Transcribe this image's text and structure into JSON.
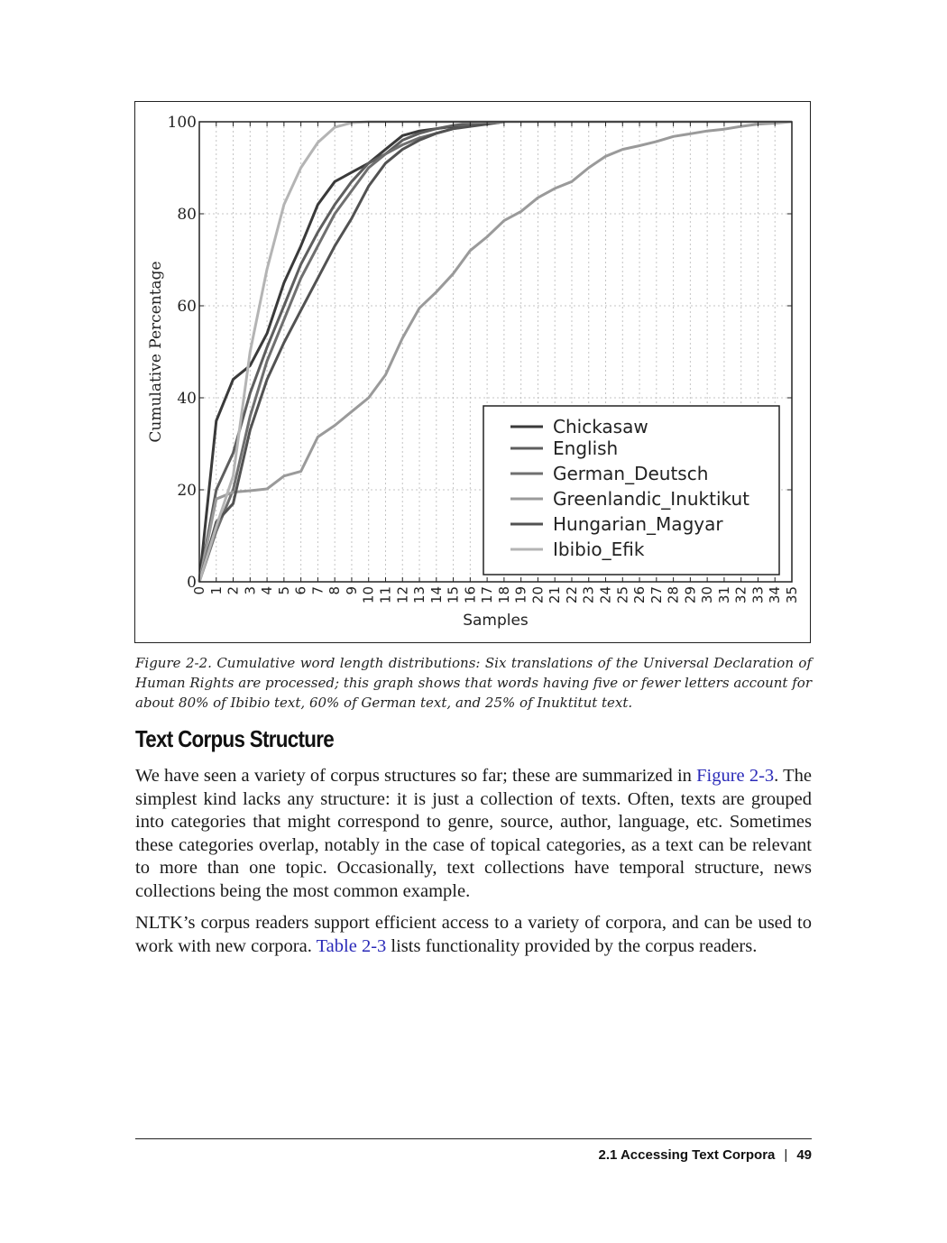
{
  "chart_data": {
    "type": "line",
    "xlabel": "Samples",
    "ylabel": "Cumulative Percentage",
    "xlim": [
      0,
      35
    ],
    "ylim": [
      0,
      100
    ],
    "x_ticks": [
      "0",
      "1",
      "2",
      "3",
      "4",
      "5",
      "6",
      "7",
      "8",
      "9",
      "10",
      "11",
      "12",
      "13",
      "14",
      "15",
      "16",
      "17",
      "18",
      "19",
      "20",
      "21",
      "22",
      "23",
      "24",
      "25",
      "26",
      "27",
      "28",
      "29",
      "30",
      "31",
      "32",
      "33",
      "34",
      "35"
    ],
    "y_ticks": [
      "0",
      "20",
      "40",
      "60",
      "80",
      "100"
    ],
    "grid": true,
    "legend_position": "lower-right",
    "series": [
      {
        "name": "Chickasaw",
        "color": "#3a3a3a",
        "values": [
          0,
          35,
          44,
          47,
          54,
          65,
          73,
          82,
          87,
          89,
          91,
          94,
          97,
          98,
          98.5,
          99,
          99.3,
          99.6,
          100,
          100,
          100,
          100,
          100,
          100,
          100,
          100,
          100,
          100,
          100,
          100,
          100,
          100,
          100,
          100,
          100,
          100
        ]
      },
      {
        "name": "English",
        "color": "#5e5e5e",
        "values": [
          0,
          20,
          28,
          41,
          51,
          60,
          69,
          76,
          82,
          87,
          91,
          93,
          96,
          97.5,
          98.5,
          99.2,
          99.6,
          99.8,
          100,
          100,
          100,
          100,
          100,
          100,
          100,
          100,
          100,
          100,
          100,
          100,
          100,
          100,
          100,
          100,
          100,
          100
        ]
      },
      {
        "name": "German_Deutsch",
        "color": "#6f6f6f",
        "values": [
          0,
          11,
          20,
          36,
          48,
          57,
          66,
          73,
          80,
          85,
          90,
          93,
          95,
          96.5,
          97.5,
          98.5,
          99.2,
          99.6,
          100,
          100,
          100,
          100,
          100,
          100,
          100,
          100,
          100,
          100,
          100,
          100,
          100,
          100,
          100,
          100,
          100,
          100
        ]
      },
      {
        "name": "Greenlandic_Inuktikut",
        "color": "#9a9a9a",
        "values": [
          0,
          18,
          19.5,
          19.8,
          20.2,
          23,
          24,
          31.5,
          34,
          37,
          40,
          45,
          53,
          59.5,
          63,
          67,
          72,
          75,
          78.5,
          80.5,
          83.5,
          85.5,
          87,
          90,
          92.5,
          94,
          94.8,
          95.7,
          96.8,
          97.4,
          98,
          98.4,
          99,
          99.5,
          99.7,
          100
        ]
      },
      {
        "name": "Hungarian_Magyar",
        "color": "#525252",
        "values": [
          0,
          13,
          17,
          33,
          44,
          52,
          59,
          66,
          73,
          79,
          86,
          91,
          94,
          96,
          97.5,
          98.5,
          99,
          99.5,
          100,
          100,
          100,
          100,
          100,
          100,
          100,
          100,
          100,
          100,
          100,
          100,
          100,
          100,
          100,
          100,
          100,
          100
        ]
      },
      {
        "name": "Ibibio_Efik",
        "color": "#b4b4b4",
        "values": [
          0,
          12,
          23,
          50,
          68,
          82,
          90,
          95.5,
          98.8,
          99.8,
          100,
          100,
          100,
          100,
          100,
          100,
          100,
          100,
          100,
          100,
          100,
          100,
          100,
          100,
          100,
          100,
          100,
          100,
          100,
          100,
          100,
          100,
          100,
          100,
          100,
          100
        ]
      }
    ]
  },
  "caption": "Figure 2-2. Cumulative word length distributions: Six translations of the Universal Declaration of Human Rights are processed; this graph shows that words having five or fewer letters account for about 80% of Ibibio text, 60% of German text, and 25% of Inuktitut text.",
  "section_heading": "Text Corpus Structure",
  "para1": {
    "before_link": "We have seen a variety of corpus structures so far; these are summarized in ",
    "link": "Figure 2-3",
    "after_link": ". The simplest kind lacks any structure: it is just a collection of texts. Often, texts are grouped into categories that might correspond to genre, source, author, language, etc. Sometimes these categories overlap, notably in the case of topical categories, as a text can be relevant to more than one topic. Occasionally, text collections have temporal structure, news collections being the most common example."
  },
  "para2": {
    "before_link": "NLTK’s corpus readers support efficient access to a variety of corpora, and can be used to work with new corpora. ",
    "link": "Table 2-3",
    "after_link": " lists functionality provided by the corpus readers."
  },
  "footer": {
    "section": "2.1 Accessing Text Corpora",
    "separator": "|",
    "page_number": "49"
  }
}
